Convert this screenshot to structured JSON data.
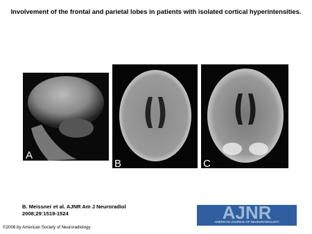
{
  "header": {
    "title": "Involvement of the frontal and parietal lobes in patients with isolated cortical hyperintensities."
  },
  "panels": [
    {
      "label": "A"
    },
    {
      "label": "B"
    },
    {
      "label": "C"
    }
  ],
  "footer": {
    "citation": "B. Meissner et al. AJNR Am J Neuroradiol 2008;29:1519-1524",
    "copyright": "©2008 by American Society of Neuroradiology"
  },
  "logo": {
    "text": "AJNR",
    "subtext": "AMERICAN JOURNAL OF NEURORADIOLOGY"
  }
}
